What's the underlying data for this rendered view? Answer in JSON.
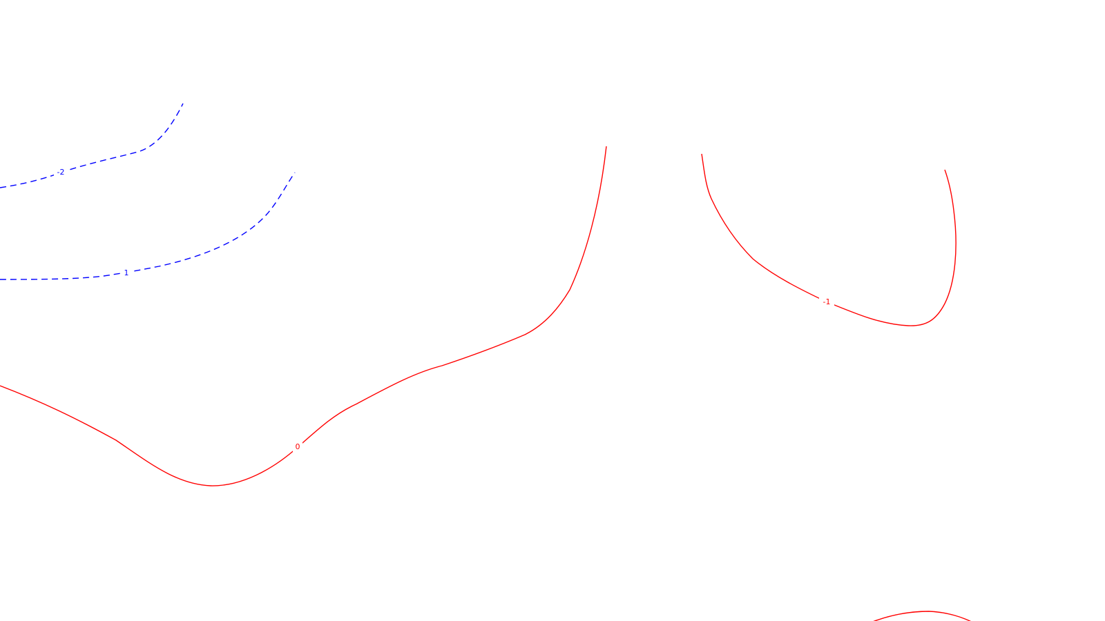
{
  "map": {
    "background": "#ffffff",
    "contour_styles": {
      "positive": {
        "color": "#ff0000",
        "dash": "solid"
      },
      "negative": {
        "color": "#0000ff",
        "dash": "dashed"
      }
    },
    "contours": [
      {
        "id": "blue-upper",
        "style": "negative",
        "label": "-2"
      },
      {
        "id": "blue-lower",
        "style": "negative",
        "label": "1"
      },
      {
        "id": "red-zero",
        "style": "positive",
        "label": "0"
      },
      {
        "id": "red-right",
        "style": "positive",
        "label": "-1"
      },
      {
        "id": "red-bottom-arc",
        "style": "positive",
        "label": ""
      }
    ]
  }
}
